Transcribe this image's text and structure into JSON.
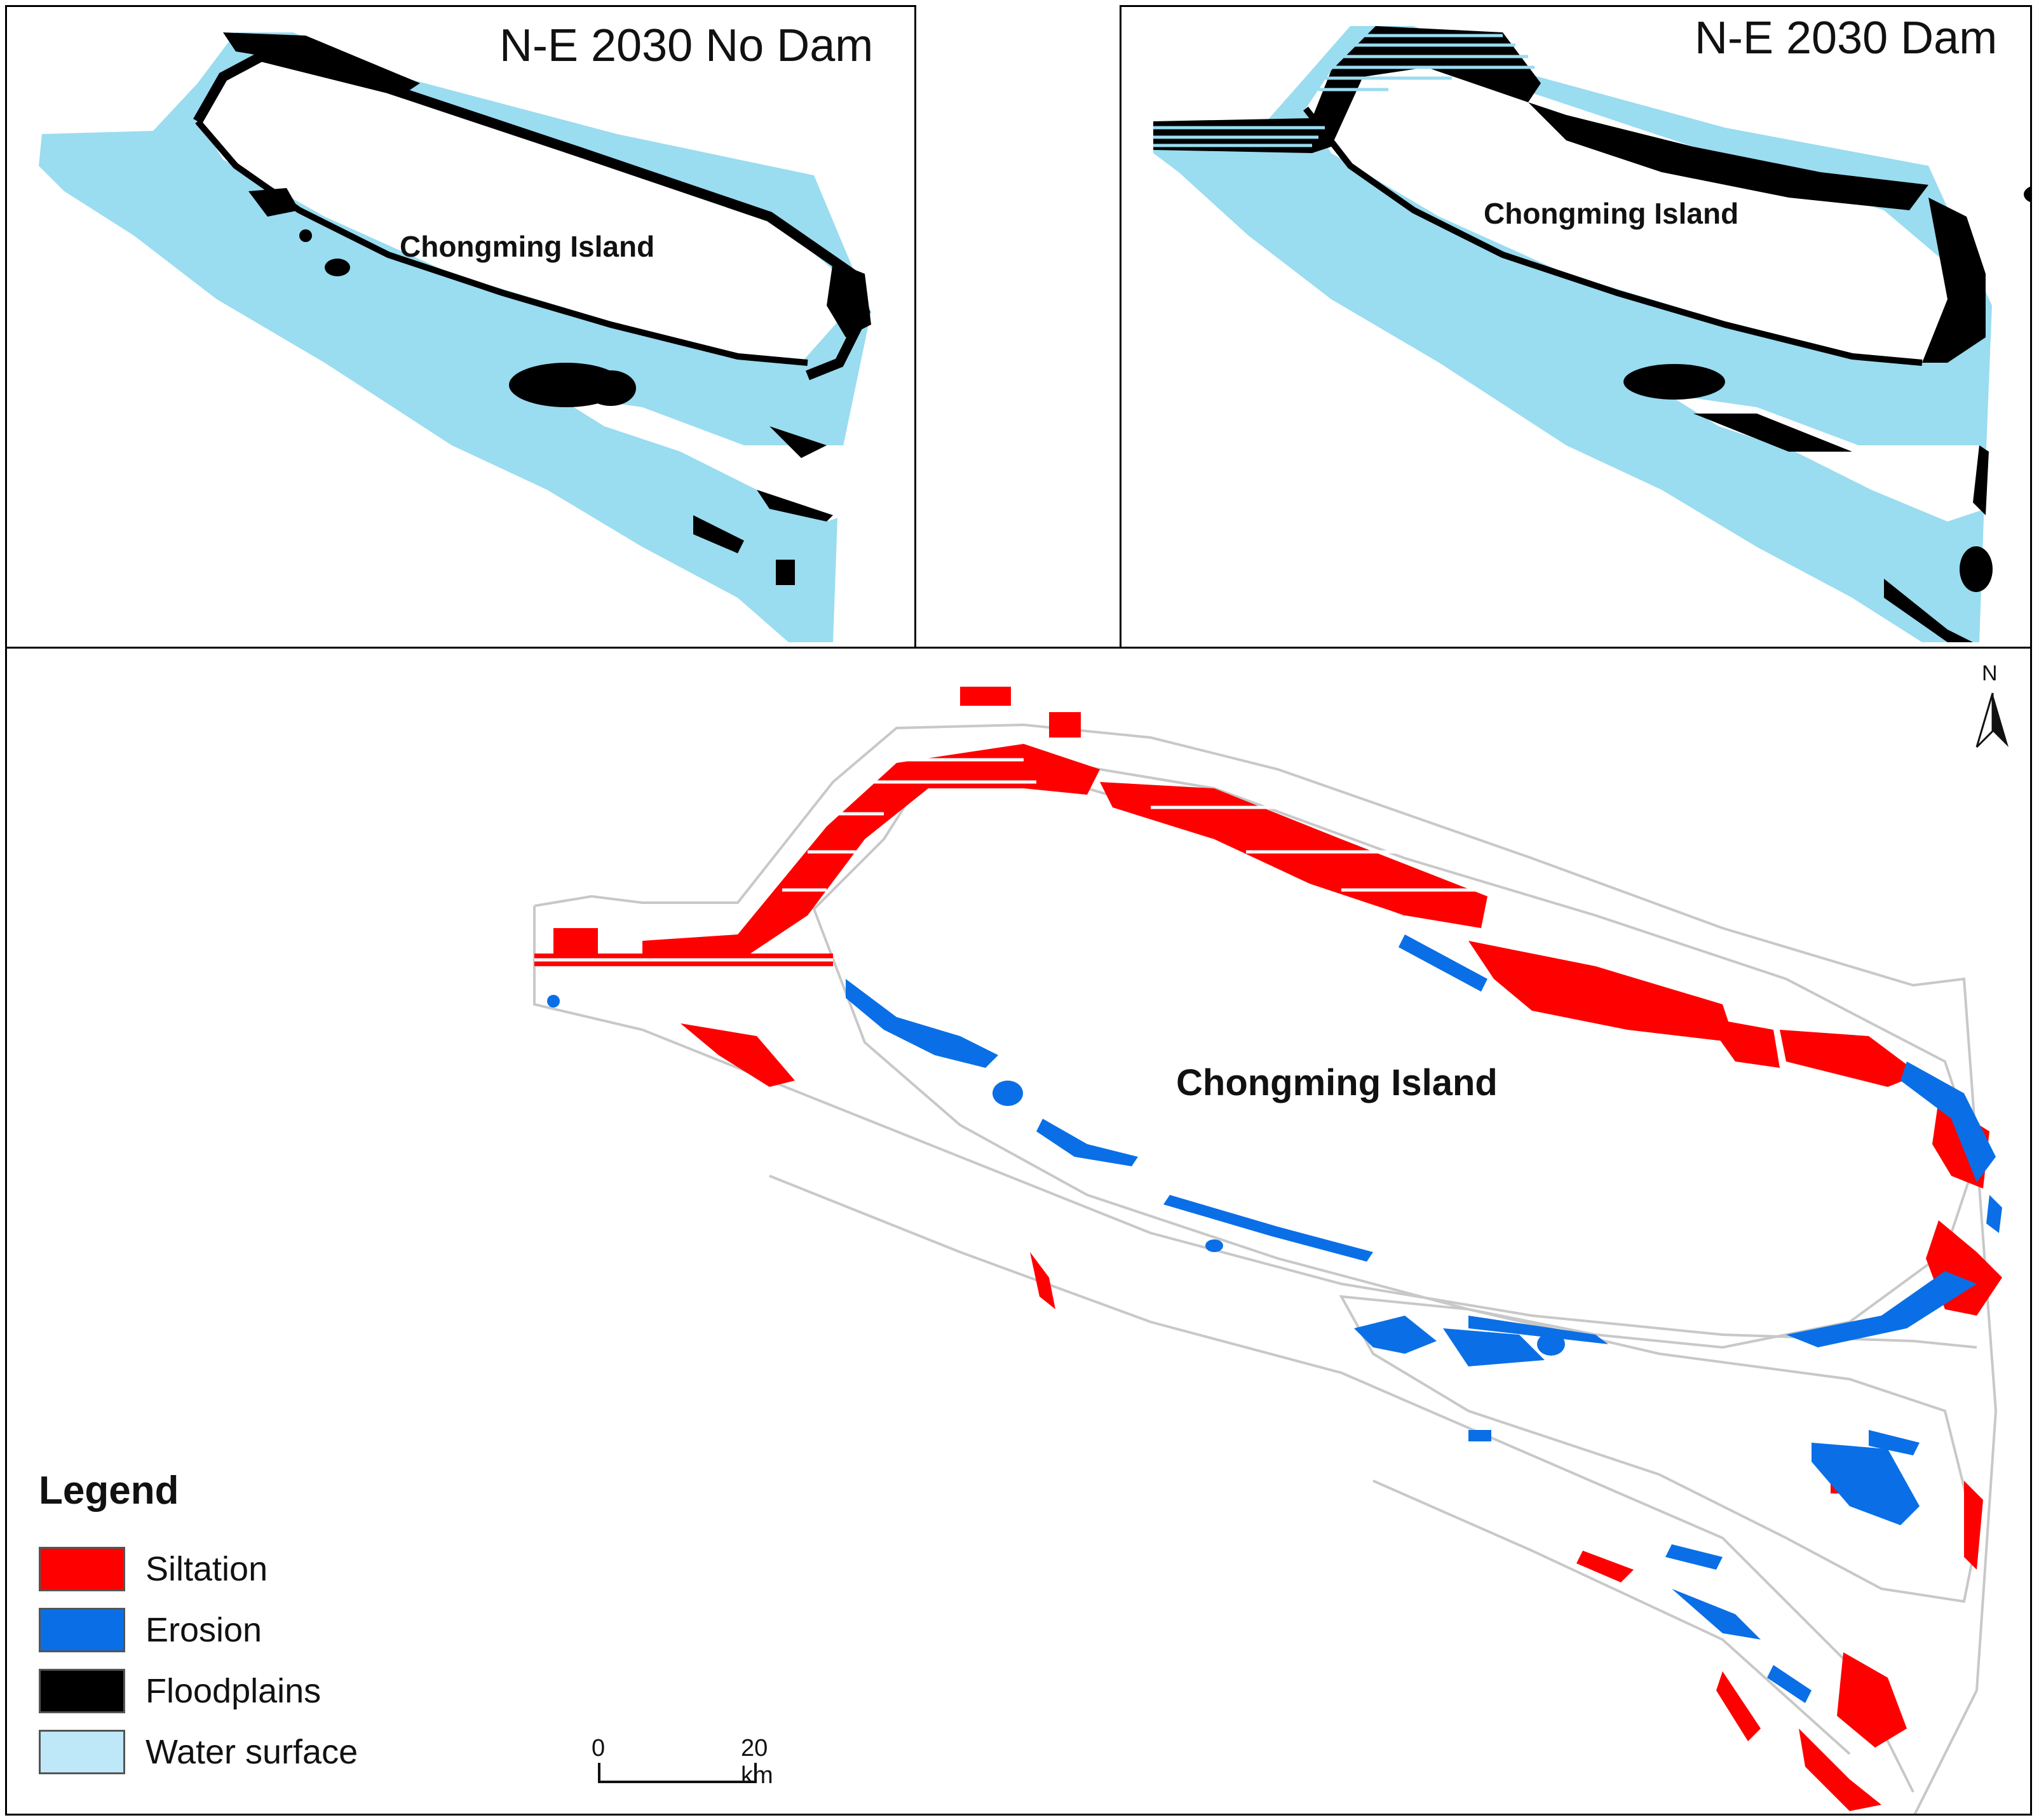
{
  "maps": {
    "left": {
      "title": "N-E 2030 No Dam",
      "island_label": "Chongming Island"
    },
    "right": {
      "title": "N-E 2030 Dam",
      "island_label": "Chongming Island"
    },
    "main": {
      "island_label": "Chongming Island"
    }
  },
  "legend": {
    "title": "Legend",
    "items": [
      {
        "label": "Siltation",
        "color": "#ff0000"
      },
      {
        "label": "Erosion",
        "color": "#0a6fe6"
      },
      {
        "label": "Floodplains",
        "color": "#000000"
      },
      {
        "label": "Water surface",
        "color": "#bee8f8"
      }
    ]
  },
  "scale_bar": {
    "start_label": "0",
    "end_label": "20 km"
  },
  "north_arrow": {
    "label": "N"
  },
  "colors": {
    "water": "#9adcf0",
    "floodplain": "#000000",
    "siltation": "#ff0000",
    "erosion": "#0a6fe6",
    "outline": "#c8c8c8"
  }
}
